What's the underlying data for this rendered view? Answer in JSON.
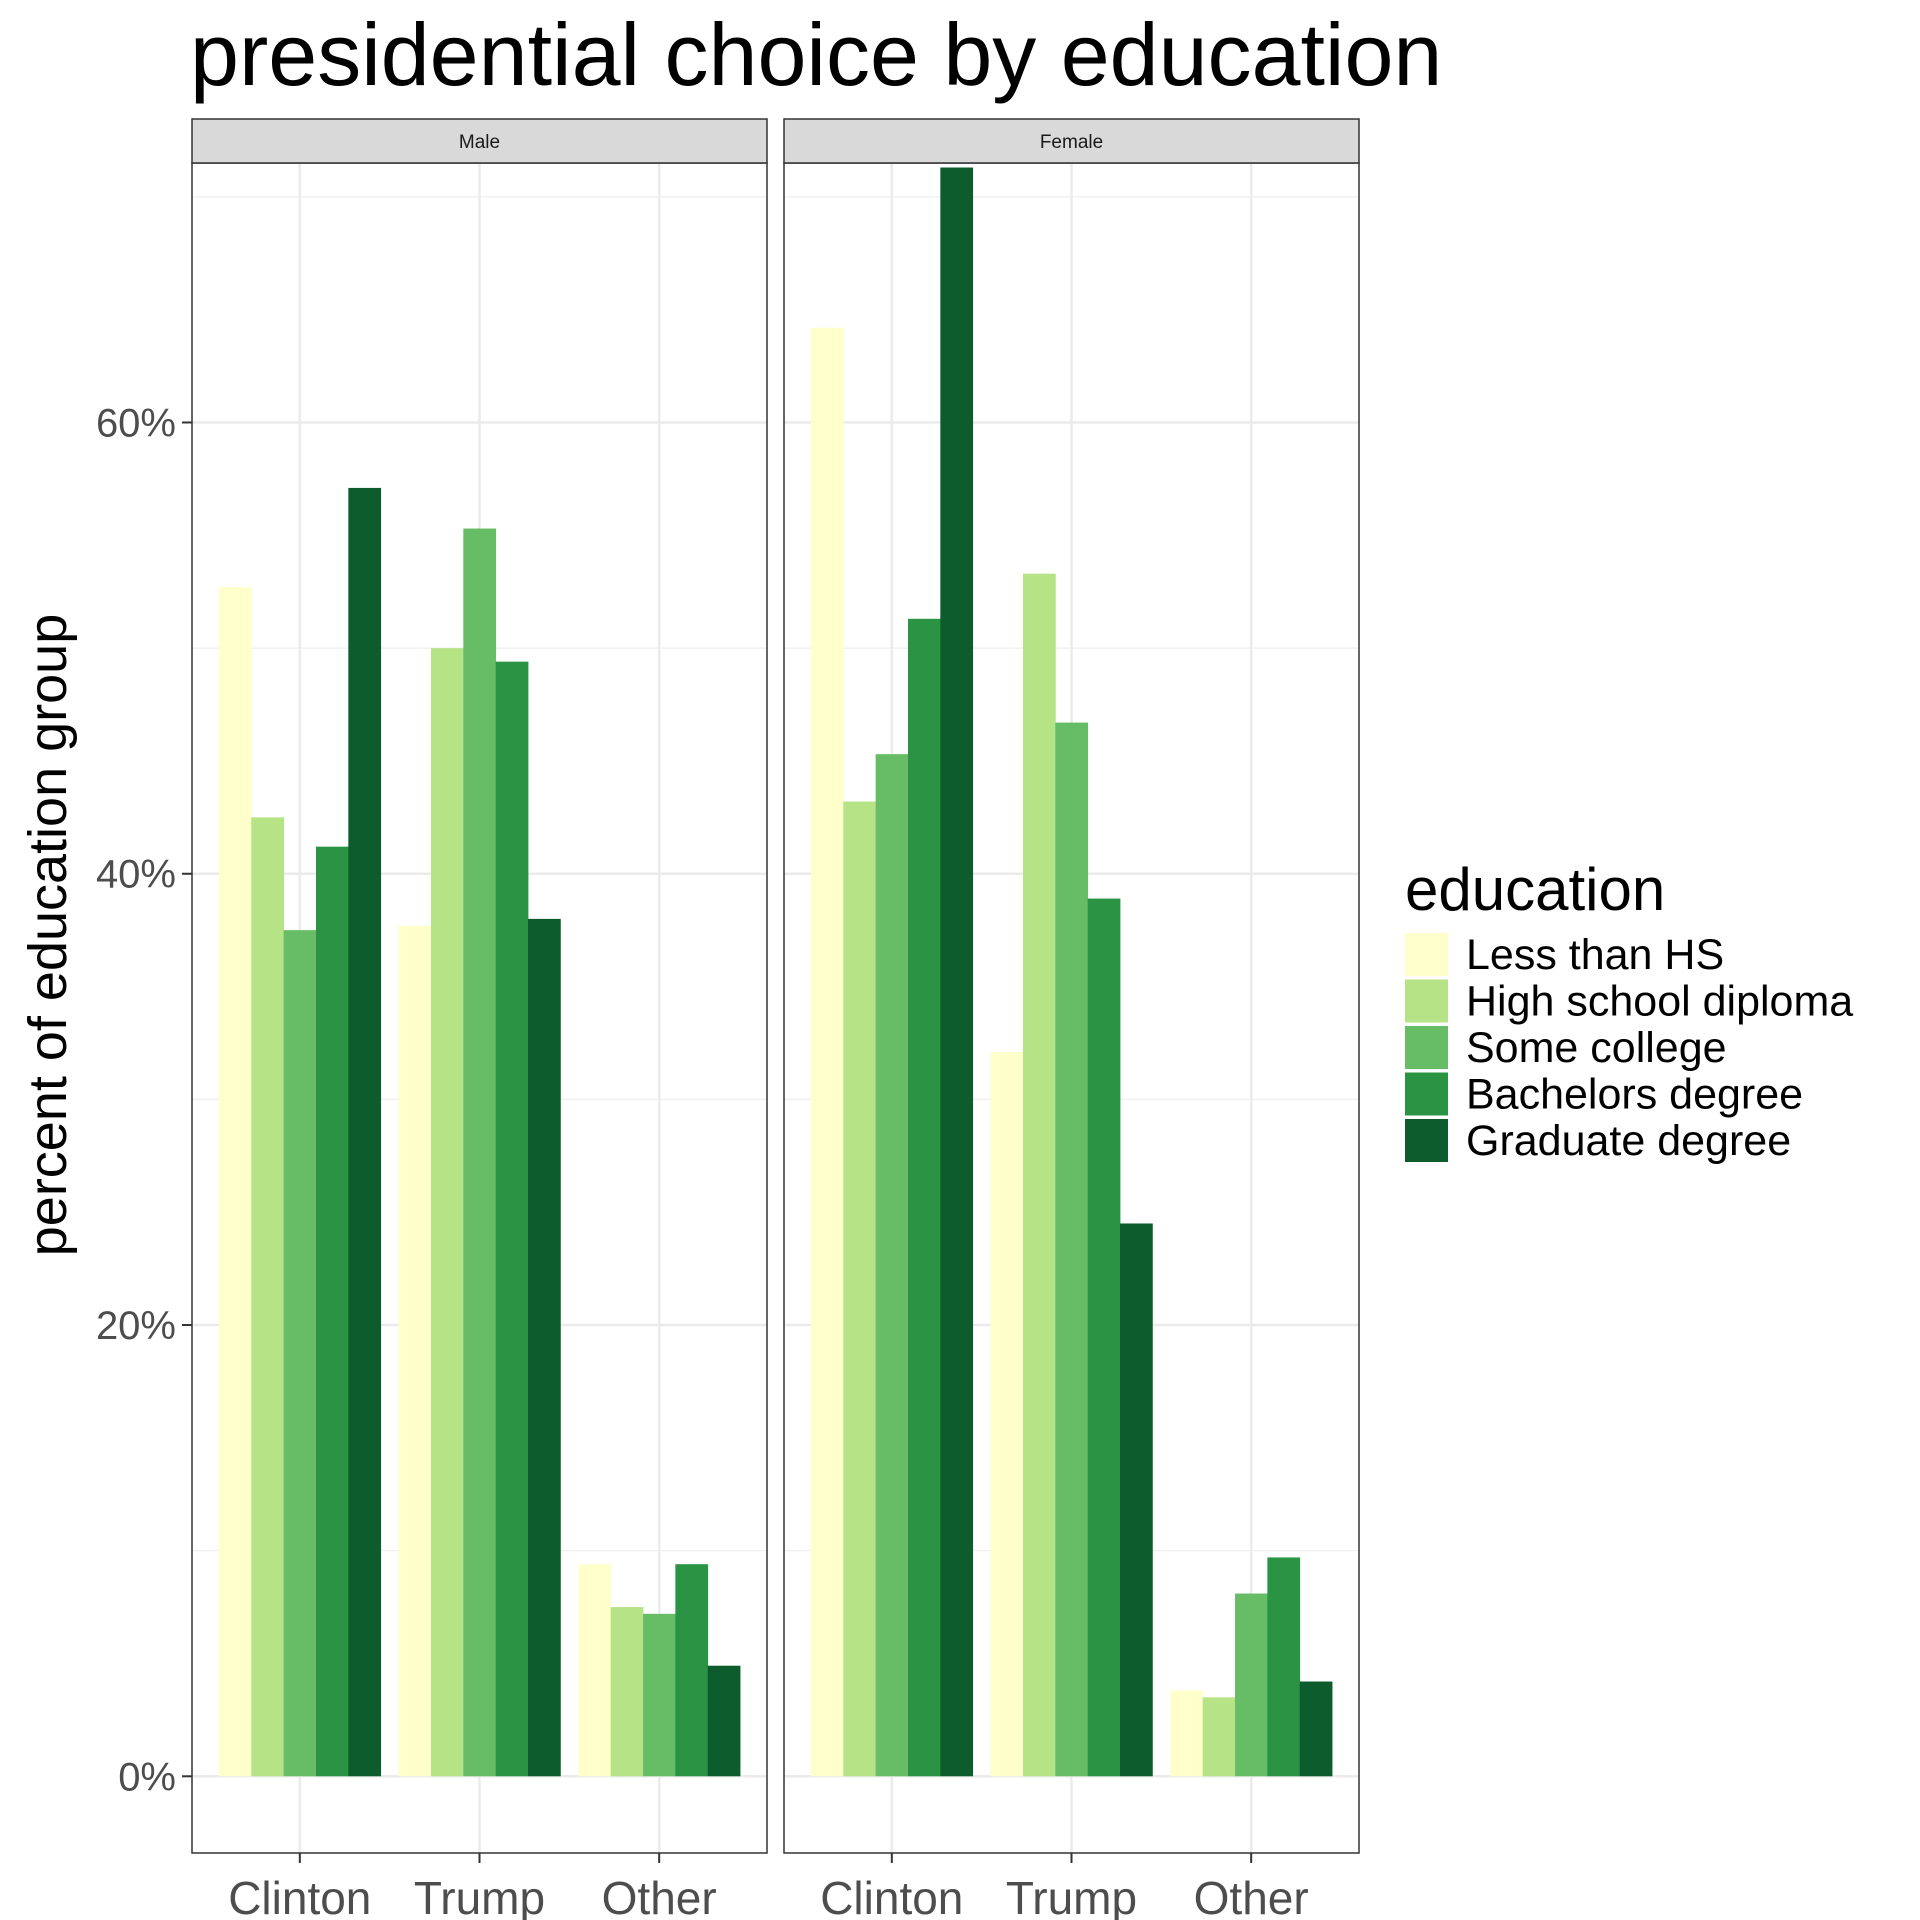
{
  "chart_data": {
    "type": "bar",
    "title": "presidential choice by education",
    "xlabel": "",
    "ylabel": "percent of education group",
    "ylim": [
      -0.034,
      0.715
    ],
    "yticks": [
      0,
      0.2,
      0.4,
      0.6
    ],
    "ytick_labels": [
      "0%",
      "20%",
      "40%",
      "60%"
    ],
    "grid": true,
    "facets": [
      "Male",
      "Female"
    ],
    "categories": [
      "Clinton",
      "Trump",
      "Other"
    ],
    "legend": {
      "title": "education",
      "position": "right"
    },
    "series": [
      {
        "name": "Less than HS",
        "color": "#ffffcc",
        "values": {
          "Male": [
            0.527,
            0.377,
            0.094
          ],
          "Female": [
            0.642,
            0.321,
            0.038
          ]
        }
      },
      {
        "name": "High school diploma",
        "color": "#b7e387",
        "values": {
          "Male": [
            0.425,
            0.5,
            0.075
          ],
          "Female": [
            0.432,
            0.533,
            0.035
          ]
        }
      },
      {
        "name": "Some college",
        "color": "#67bd65",
        "values": {
          "Male": [
            0.375,
            0.553,
            0.072
          ],
          "Female": [
            0.453,
            0.467,
            0.081
          ]
        }
      },
      {
        "name": "Bachelors degree",
        "color": "#2a9444",
        "values": {
          "Male": [
            0.412,
            0.494,
            0.094
          ],
          "Female": [
            0.513,
            0.389,
            0.097
          ]
        }
      },
      {
        "name": "Graduate degree",
        "color": "#0d5c2d",
        "values": {
          "Male": [
            0.571,
            0.38,
            0.049
          ],
          "Female": [
            0.713,
            0.245,
            0.042
          ]
        }
      }
    ]
  }
}
